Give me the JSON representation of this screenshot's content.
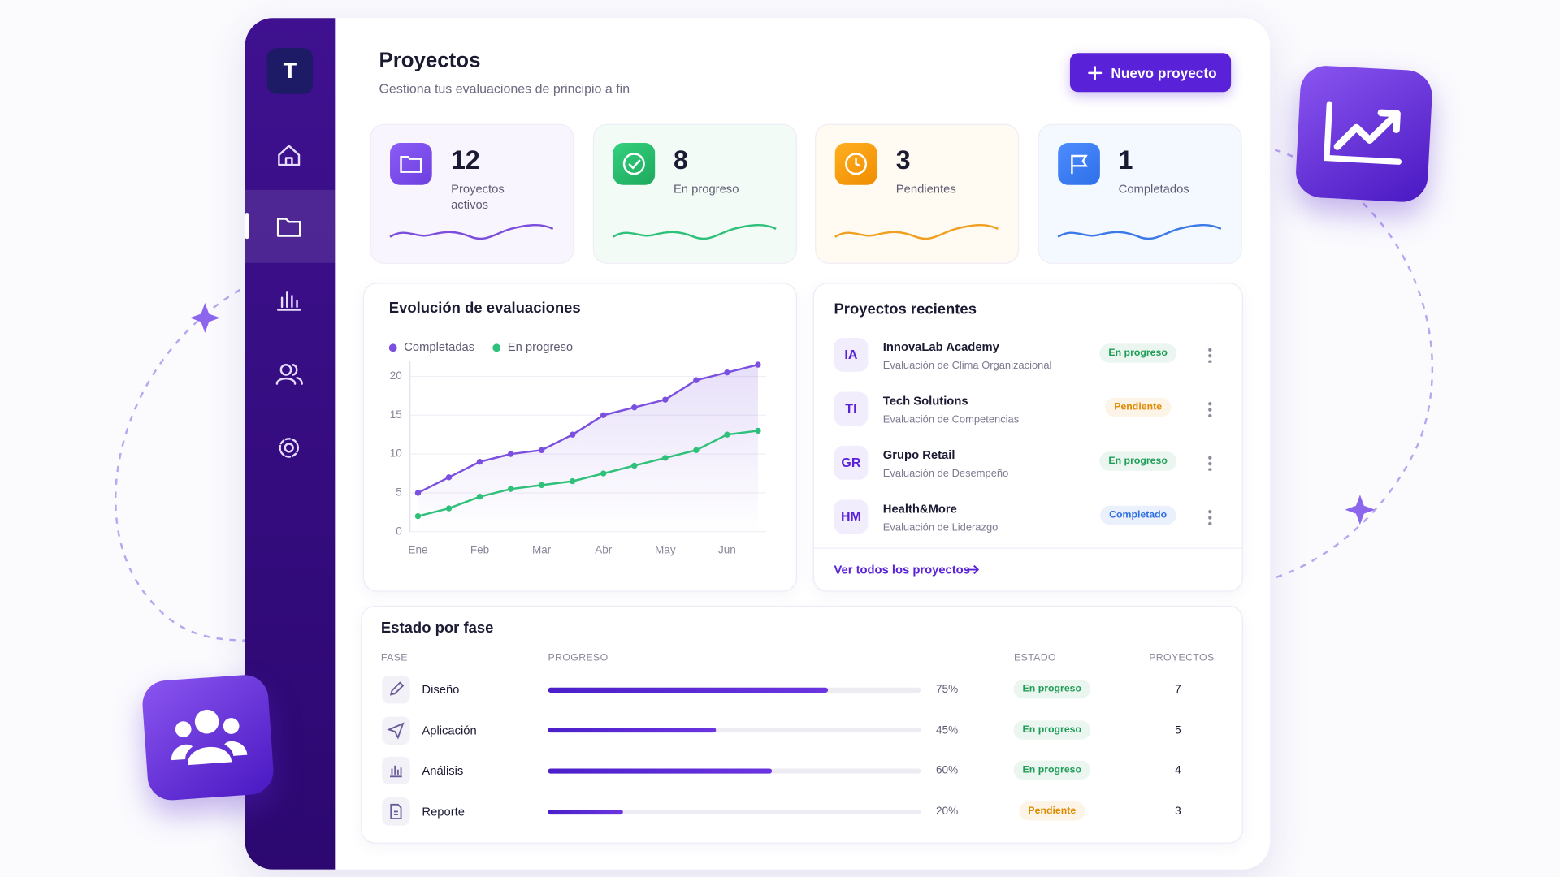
{
  "sidebar": {
    "logo": "T"
  },
  "header": {
    "title": "Proyectos",
    "subtitle": "Gestiona tus evaluaciones de principio a fin",
    "button": "Nuevo proyecto"
  },
  "stats": [
    {
      "value": 12,
      "label": "Proyectos activos"
    },
    {
      "value": 8,
      "label": "En progreso"
    },
    {
      "value": 3,
      "label": "Pendientes"
    },
    {
      "value": 1,
      "label": "Completados"
    }
  ],
  "chart_data": {
    "type": "line",
    "title": "Evolución de evaluaciones",
    "categories": [
      "Ene",
      null,
      "Feb",
      null,
      "Mar",
      null,
      "Abr",
      null,
      "May",
      null,
      "Jun",
      null
    ],
    "series": [
      {
        "name": "Completadas",
        "color": "#7b4fe0",
        "values": [
          5,
          7,
          9,
          10,
          10.5,
          12.5,
          15,
          16,
          17,
          19.5,
          20.5,
          21.5
        ]
      },
      {
        "name": "En progreso",
        "color": "#2fc07a",
        "values": [
          2,
          3,
          4.5,
          5.5,
          6,
          6.5,
          7.5,
          8.5,
          9.5,
          10.5,
          12.5,
          13
        ]
      }
    ],
    "ylim": [
      0,
      22
    ],
    "yticks": [
      0,
      5,
      10,
      15,
      20
    ]
  },
  "recent": {
    "title": "Proyectos recientes",
    "items": [
      {
        "initials": "IA",
        "name": "InnovaLab Academy",
        "subtitle": "Evaluación de Clima Organizacional",
        "status": "En progreso",
        "status_color": "#1f9d57"
      },
      {
        "initials": "TI",
        "name": "Tech Solutions",
        "subtitle": "Evaluación de Competencias",
        "status": "Pendiente",
        "status_color": "#e08a00"
      },
      {
        "initials": "GR",
        "name": "Grupo Retail",
        "subtitle": "Evaluación de Desempeño",
        "status": "En progreso",
        "status_color": "#1f9d57"
      },
      {
        "initials": "HM",
        "name": "Health&More",
        "subtitle": "Evaluación de Liderazgo",
        "status": "Completado",
        "status_color": "#2f6fe0"
      }
    ],
    "link": "Ver todos los proyectos"
  },
  "phases": {
    "title": "Estado por fase",
    "columns": [
      "FASE",
      "PROGRESO",
      "ESTADO",
      "PROYECTOS"
    ],
    "rows": [
      {
        "name": "Diseño",
        "progress": 75,
        "progress_label": "75%",
        "status": "En progreso",
        "status_color": "#1f9d57",
        "projects": 7
      },
      {
        "name": "Aplicación",
        "progress": 45,
        "progress_label": "45%",
        "status": "En progreso",
        "status_color": "#1f9d57",
        "projects": 5
      },
      {
        "name": "Análisis",
        "progress": 60,
        "progress_label": "60%",
        "status": "En progreso",
        "status_color": "#1f9d57",
        "projects": 4
      },
      {
        "name": "Reporte",
        "progress": 20,
        "progress_label": "20%",
        "status": "Pendiente",
        "status_color": "#e08a00",
        "projects": 3
      }
    ]
  }
}
